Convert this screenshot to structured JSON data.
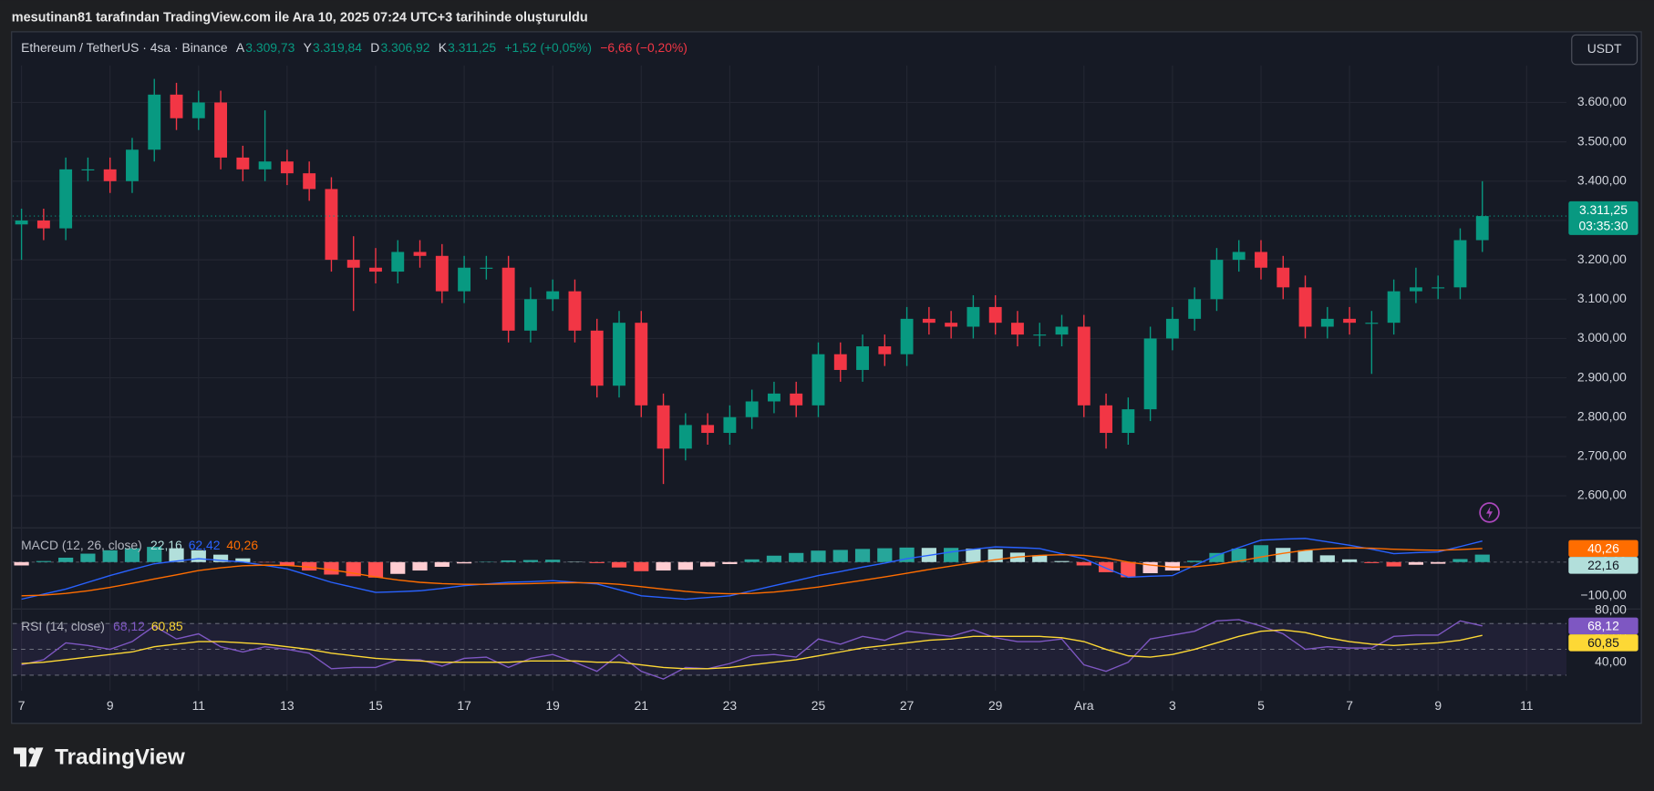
{
  "caption": "mesutinan81 tarafından TradingView.com ile Ara 10, 2025 07:24 UTC+3 tarihinde oluşturuldu",
  "footer": {
    "brand": "TradingView"
  },
  "chart_data": [
    {
      "type": "candlestick",
      "title": "Ethereum / TetherUS · 4sa · Binance",
      "ohlc": [
        {
          "label": "A",
          "value": "3.309,73"
        },
        {
          "label": "Y",
          "value": "3.319,84"
        },
        {
          "label": "D",
          "value": "3.306,92"
        },
        {
          "label": "K",
          "value": "3.311,25"
        }
      ],
      "change": "+1,52 (+0,05%)",
      "day_change": "−6,66 (−0,20%)",
      "currency": "USDT",
      "last_price_label": "3.311,25",
      "countdown": "03:35:30",
      "up_color": "#089981",
      "down_color": "#f23645",
      "grid": true,
      "x": [
        0,
        0.5,
        1,
        1.5,
        2,
        2.5,
        3,
        3.5,
        4,
        4.5,
        5,
        5.5,
        6,
        6.5,
        7,
        7.5,
        8,
        8.5,
        9,
        9.5,
        10,
        10.5,
        11,
        11.5,
        12,
        12.5,
        13,
        13.5,
        14,
        14.5,
        15,
        15.5,
        16,
        16.5,
        17,
        17.5,
        18,
        18.5,
        19,
        19.5,
        20,
        20.5,
        21,
        21.5,
        22,
        22.5,
        23,
        23.5,
        24,
        24.5,
        25,
        25.5,
        26,
        26.5,
        27,
        27.5,
        28,
        28.5,
        29,
        29.5,
        30,
        30.5,
        31,
        31.5,
        32,
        32.5,
        33
      ],
      "open": [
        3290,
        3300,
        3280,
        3430,
        3430,
        3400,
        3480,
        3620,
        3560,
        3600,
        3460,
        3430,
        3450,
        3420,
        3380,
        3200,
        3180,
        3170,
        3220,
        3210,
        3120,
        3180,
        3180,
        3020,
        3100,
        3120,
        3020,
        2880,
        3040,
        2830,
        2720,
        2780,
        2760,
        2800,
        2840,
        2860,
        2830,
        2960,
        2920,
        2980,
        2960,
        3050,
        3040,
        3030,
        3080,
        3040,
        3010,
        3010,
        3030,
        2830,
        2760,
        2820,
        3000,
        3050,
        3100,
        3200,
        3220,
        3180,
        3130,
        3030,
        3050,
        3040,
        3040,
        3120,
        3130,
        3130,
        3250
      ],
      "high": [
        3330,
        3330,
        3460,
        3460,
        3460,
        3510,
        3660,
        3650,
        3630,
        3630,
        3490,
        3580,
        3480,
        3450,
        3410,
        3260,
        3230,
        3250,
        3250,
        3240,
        3210,
        3210,
        3210,
        3130,
        3150,
        3150,
        3050,
        3070,
        3070,
        2860,
        2810,
        2810,
        2830,
        2870,
        2890,
        2890,
        2990,
        2990,
        3010,
        3010,
        3080,
        3080,
        3070,
        3110,
        3110,
        3070,
        3040,
        3060,
        3060,
        2860,
        2850,
        3030,
        3080,
        3130,
        3230,
        3250,
        3250,
        3210,
        3160,
        3080,
        3080,
        3070,
        3150,
        3180,
        3160,
        3280,
        3400
      ],
      "low": [
        3200,
        3250,
        3250,
        3400,
        3370,
        3370,
        3450,
        3530,
        3530,
        3430,
        3400,
        3400,
        3390,
        3350,
        3170,
        3070,
        3140,
        3140,
        3180,
        3090,
        3090,
        3150,
        2990,
        2990,
        3070,
        2990,
        2850,
        2850,
        2800,
        2630,
        2690,
        2730,
        2730,
        2770,
        2810,
        2800,
        2800,
        2890,
        2890,
        2930,
        2930,
        3010,
        3000,
        3000,
        3010,
        2980,
        2980,
        2980,
        2800,
        2720,
        2730,
        2790,
        2970,
        3020,
        3070,
        3170,
        3150,
        3100,
        3000,
        3000,
        3010,
        2910,
        3010,
        3090,
        3100,
        3100,
        3220
      ],
      "close": [
        3300,
        3280,
        3430,
        3430,
        3400,
        3480,
        3620,
        3560,
        3600,
        3460,
        3430,
        3450,
        3420,
        3380,
        3200,
        3180,
        3170,
        3220,
        3210,
        3120,
        3180,
        3180,
        3020,
        3100,
        3120,
        3020,
        2880,
        3040,
        2830,
        2720,
        2780,
        2760,
        2800,
        2840,
        2860,
        2830,
        2960,
        2920,
        2980,
        2960,
        3050,
        3040,
        3030,
        3080,
        3040,
        3010,
        3010,
        3030,
        2830,
        2760,
        2820,
        3000,
        3050,
        3100,
        3200,
        3220,
        3180,
        3130,
        3030,
        3050,
        3040,
        3040,
        3120,
        3130,
        3130,
        3250,
        3311.25
      ],
      "xlim": [
        -0.2,
        34.9
      ],
      "xticks": [
        {
          "value": 0,
          "label": "7"
        },
        {
          "value": 2,
          "label": "9"
        },
        {
          "value": 4,
          "label": "11"
        },
        {
          "value": 6,
          "label": "13"
        },
        {
          "value": 8,
          "label": "15"
        },
        {
          "value": 10,
          "label": "17"
        },
        {
          "value": 12,
          "label": "19"
        },
        {
          "value": 14,
          "label": "21"
        },
        {
          "value": 16,
          "label": "23"
        },
        {
          "value": 18,
          "label": "25"
        },
        {
          "value": 20,
          "label": "27"
        },
        {
          "value": 22,
          "label": "29"
        },
        {
          "value": 24,
          "label": "Ara"
        },
        {
          "value": 26,
          "label": "3"
        },
        {
          "value": 28,
          "label": "5"
        },
        {
          "value": 30,
          "label": "7"
        },
        {
          "value": 32,
          "label": "9"
        },
        {
          "value": 34,
          "label": "11"
        }
      ],
      "ylim": [
        2520,
        3694
      ],
      "yticks": [
        {
          "value": 2600,
          "label": "2.600,00"
        },
        {
          "value": 2700,
          "label": "2.700,00"
        },
        {
          "value": 2800,
          "label": "2.800,00"
        },
        {
          "value": 2900,
          "label": "2.900,00"
        },
        {
          "value": 3000,
          "label": "3.000,00"
        },
        {
          "value": 3100,
          "label": "3.100,00"
        },
        {
          "value": 3200,
          "label": "3.200,00"
        },
        {
          "value": 3300,
          "label": "3.300,00"
        },
        {
          "value": 3400,
          "label": "3.400,00"
        },
        {
          "value": 3500,
          "label": "3.500,00"
        },
        {
          "value": 3600,
          "label": "3.600,00"
        }
      ]
    },
    {
      "type": "macd",
      "title": "MACD (12, 26, close)",
      "ylim": [
        -137.5,
        100
      ],
      "yticks": [
        {
          "value": 0,
          "label": "0,00"
        },
        {
          "value": -100,
          "label": "−100,00"
        }
      ],
      "series": [
        {
          "kind": "histogram",
          "colors": [
            "#26a69a",
            "#b2dfdb",
            "#ff5252",
            "#ffcdd2"
          ],
          "last_label": "22,16",
          "axis_tag": true,
          "values": [
            -10,
            3,
            13,
            25,
            35,
            41,
            45,
            41,
            35,
            22,
            11,
            -1,
            -10,
            -25,
            -37,
            -42,
            -46,
            -35,
            -25,
            -14,
            -4,
            1,
            5,
            6,
            7,
            1,
            -3,
            -16,
            -27,
            -25,
            -23,
            -13,
            -6,
            8,
            19,
            27,
            34,
            36,
            39,
            41,
            43,
            42,
            42,
            40,
            38,
            28,
            20,
            3,
            -10,
            -30,
            -45,
            -33,
            -25,
            4,
            27,
            40,
            50,
            42,
            35,
            20,
            8,
            -3,
            -13,
            -8,
            -5,
            9,
            22.16
          ]
        },
        {
          "kind": "line",
          "color": "#2962ff",
          "last_label": "62,42",
          "values": [
            -110,
            -95,
            -80,
            -60,
            -40,
            -22,
            -5,
            3,
            10,
            5,
            0,
            -10,
            -20,
            -40,
            -60,
            -75,
            -90,
            -88,
            -85,
            -78,
            -70,
            -65,
            -60,
            -58,
            -55,
            -60,
            -65,
            -82,
            -100,
            -105,
            -110,
            -105,
            -100,
            -85,
            -70,
            -55,
            -40,
            -28,
            -15,
            -3,
            10,
            20,
            30,
            38,
            45,
            43,
            40,
            25,
            10,
            -18,
            -45,
            -42,
            -40,
            -10,
            20,
            43,
            65,
            68,
            70,
            60,
            50,
            38,
            25,
            28,
            30,
            46,
            62.42
          ]
        },
        {
          "kind": "line",
          "color": "#ff6d00",
          "last_label": "40,26",
          "axis_tag": true,
          "values": [
            -100,
            -98,
            -93,
            -85,
            -75,
            -63,
            -50,
            -38,
            -25,
            -17,
            -11,
            -9,
            -10,
            -15,
            -23,
            -33,
            -44,
            -53,
            -60,
            -64,
            -66,
            -66,
            -65,
            -64,
            -62,
            -61,
            -62,
            -66,
            -73,
            -80,
            -87,
            -92,
            -94,
            -93,
            -89,
            -82,
            -74,
            -64,
            -54,
            -44,
            -33,
            -22,
            -12,
            -2,
            7,
            15,
            20,
            22,
            20,
            12,
            0,
            -9,
            -15,
            -14,
            -7,
            3,
            15,
            26,
            35,
            40,
            42,
            41,
            38,
            36,
            35,
            37,
            40.26
          ]
        }
      ]
    },
    {
      "type": "line",
      "title": "RSI (14, close)",
      "ylim": [
        18,
        80.8
      ],
      "yticks": [
        {
          "value": 40,
          "label": "40,00"
        },
        {
          "value": 60,
          "label": "60,00"
        },
        {
          "value": 80,
          "label": "80,00"
        }
      ],
      "levels": [
        30,
        50,
        70
      ],
      "series": [
        {
          "color": "#7e57c2",
          "last_label": "68,12",
          "axis_tag": true,
          "values": [
            38,
            42,
            55,
            53,
            50,
            56,
            68,
            58,
            62,
            52,
            48,
            52,
            50,
            47,
            35,
            36,
            36,
            42,
            42,
            37,
            43,
            44,
            36,
            43,
            46,
            40,
            33,
            46,
            33,
            27,
            36,
            35,
            39,
            45,
            46,
            44,
            58,
            54,
            60,
            57,
            64,
            62,
            60,
            65,
            59,
            56,
            56,
            58,
            38,
            33,
            40,
            58,
            61,
            64,
            72,
            73,
            68,
            62,
            50,
            52,
            51,
            51,
            60,
            61,
            61,
            72,
            68.12
          ]
        },
        {
          "color": "#fdd835",
          "last_label": "60,85",
          "axis_tag": true,
          "values": [
            39,
            40,
            42,
            44,
            46,
            48,
            52,
            54,
            56,
            56,
            55,
            54,
            52,
            50,
            47,
            45,
            43,
            42,
            41,
            40,
            40,
            40,
            40,
            41,
            41,
            41,
            40,
            40,
            38,
            36,
            35,
            35,
            36,
            38,
            40,
            42,
            45,
            48,
            51,
            53,
            55,
            57,
            58,
            60,
            60,
            60,
            60,
            59,
            56,
            50,
            45,
            44,
            46,
            50,
            55,
            60,
            64,
            65,
            63,
            59,
            56,
            54,
            53,
            54,
            55,
            57,
            60.85
          ]
        }
      ]
    }
  ]
}
